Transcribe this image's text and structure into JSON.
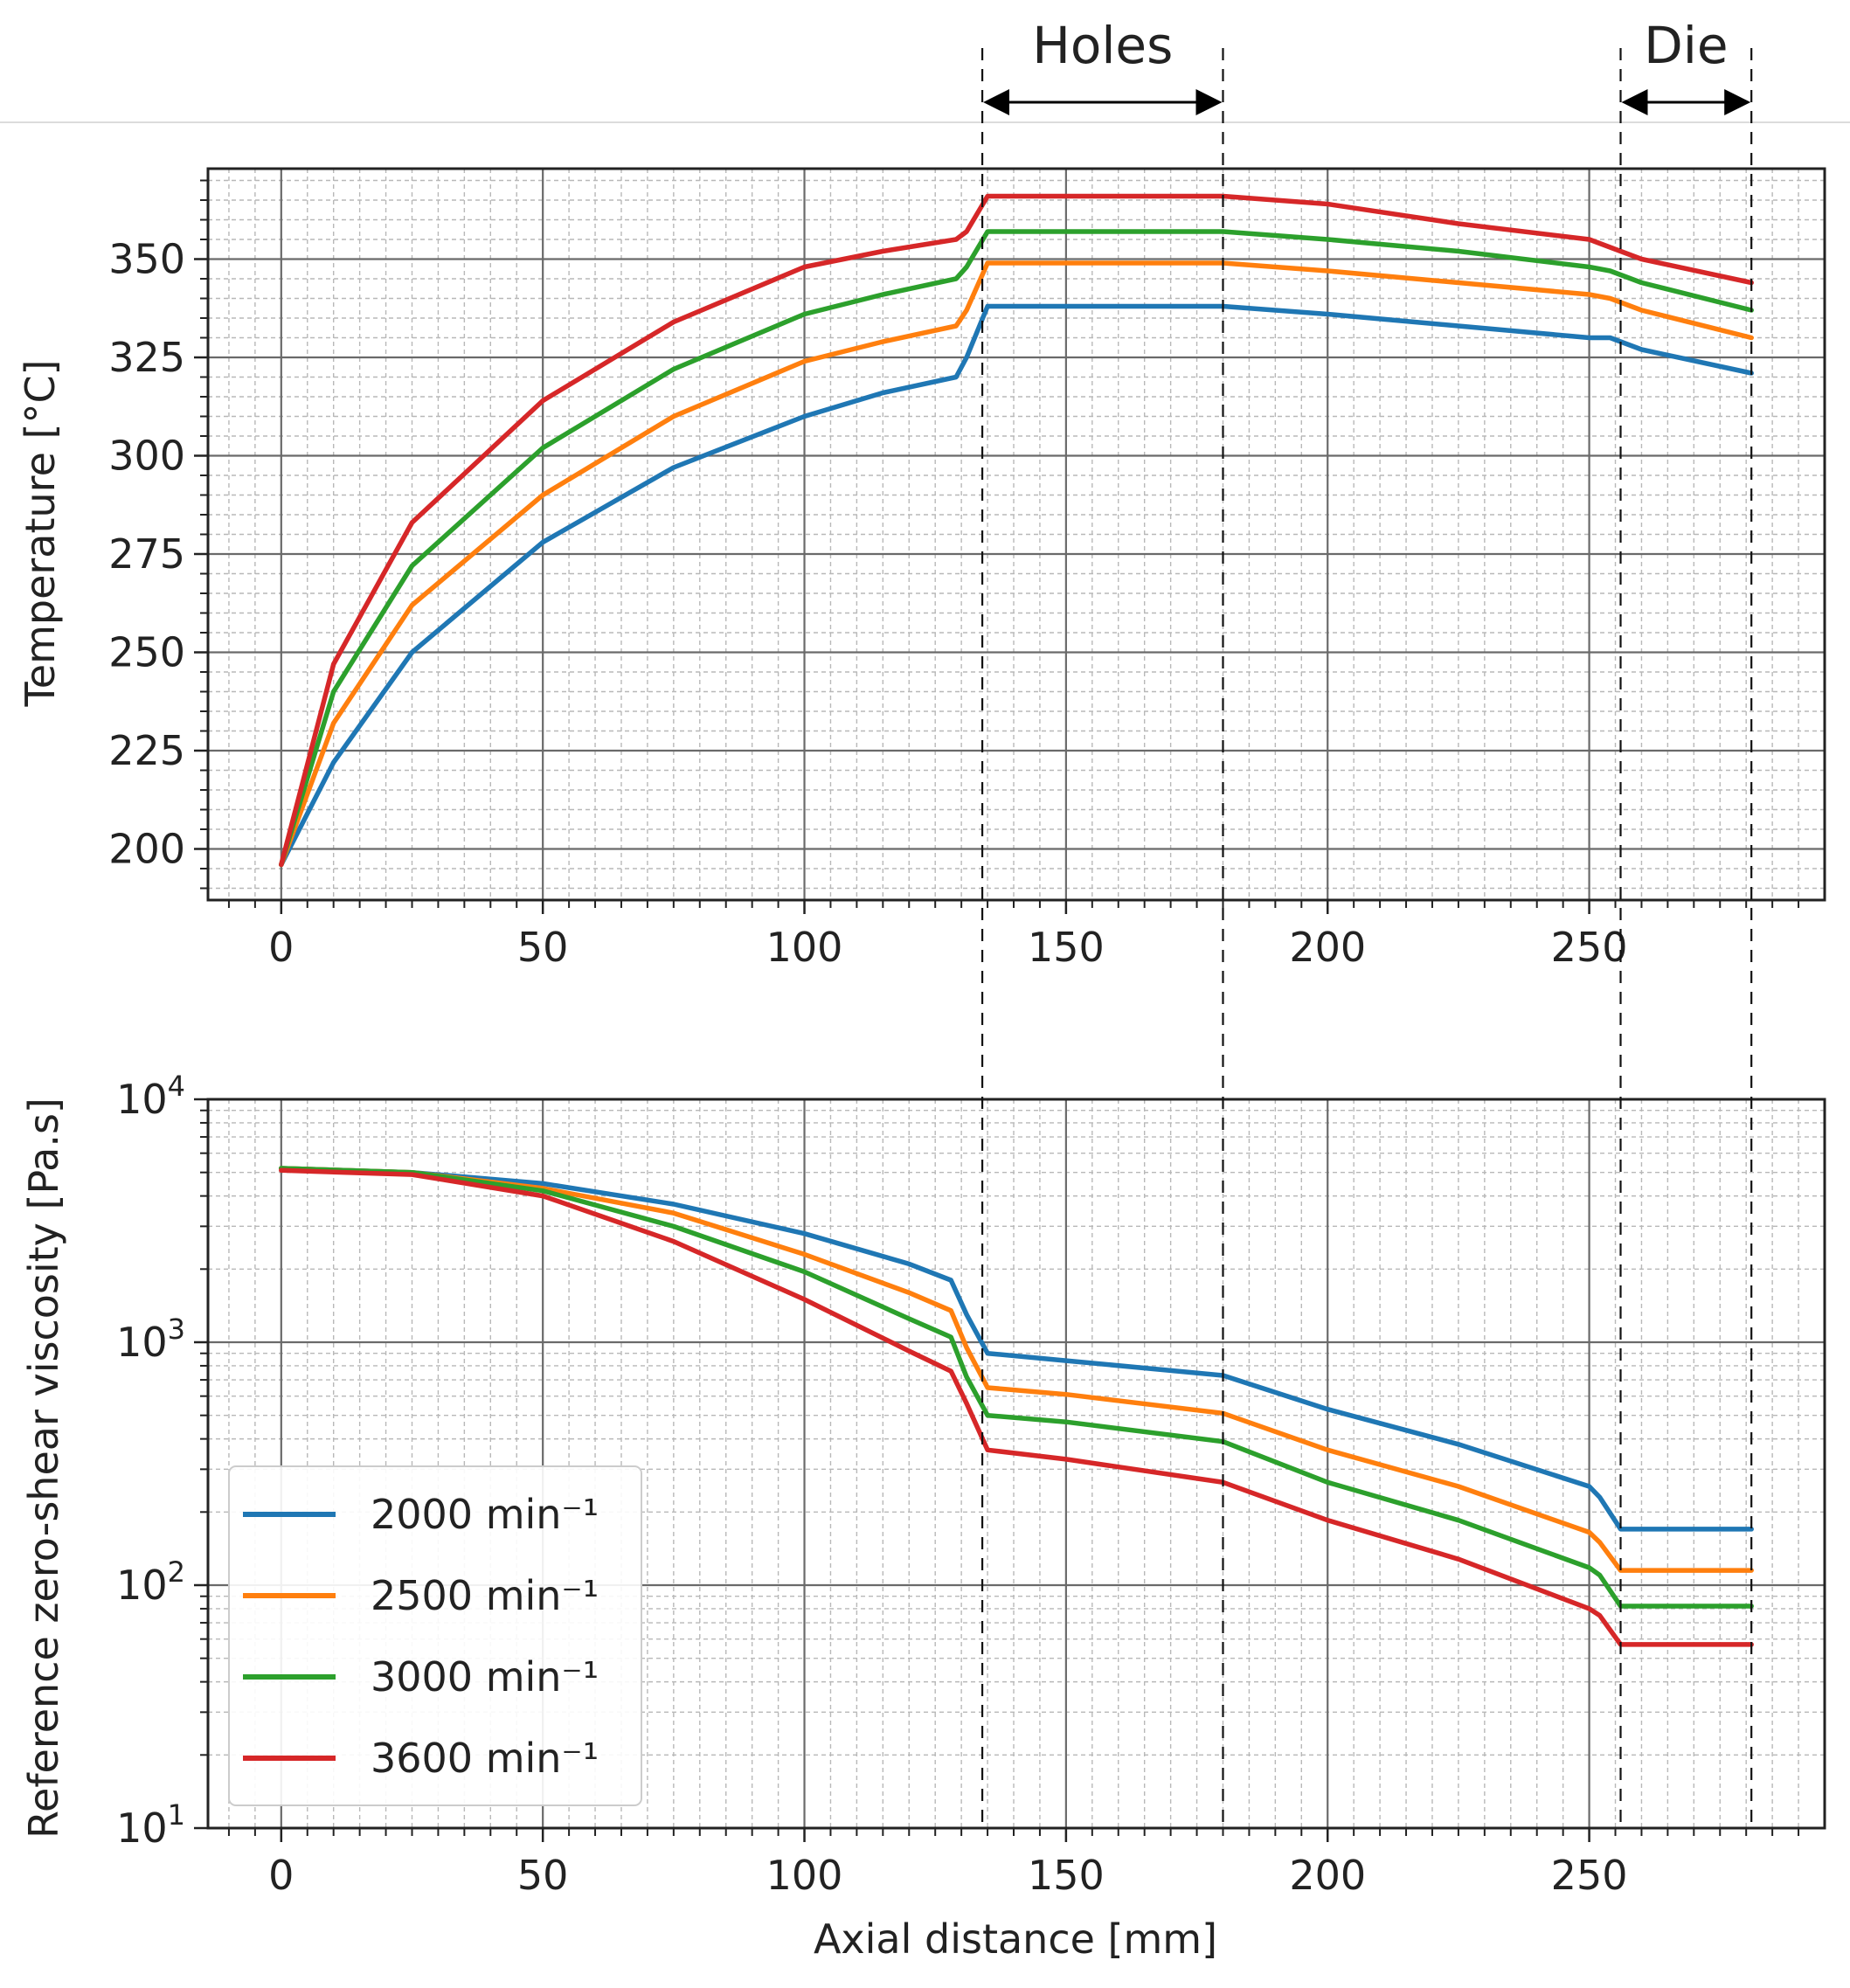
{
  "chart_data": [
    {
      "type": "line",
      "ylabel": "Temperature [°C]",
      "xlabel": "",
      "x_ticks": [
        0,
        50,
        100,
        150,
        200,
        250
      ],
      "y_ticks": [
        200,
        225,
        250,
        275,
        300,
        325,
        350
      ],
      "xlim": [
        -14,
        295
      ],
      "ylim": [
        187,
        373
      ],
      "grid": true,
      "series": [
        {
          "name": "2000 min⁻¹",
          "color": "#1f77b4",
          "points": [
            [
              0,
              196
            ],
            [
              10,
              222
            ],
            [
              25,
              250
            ],
            [
              50,
              278
            ],
            [
              75,
              297
            ],
            [
              100,
              310
            ],
            [
              115,
              316
            ],
            [
              129,
              320
            ],
            [
              131,
              325
            ],
            [
              135,
              338
            ],
            [
              180,
              338
            ],
            [
              200,
              336
            ],
            [
              225,
              333
            ],
            [
              250,
              330
            ],
            [
              254,
              330
            ],
            [
              260,
              327
            ],
            [
              281,
              321
            ]
          ]
        },
        {
          "name": "2500 min⁻¹",
          "color": "#ff7f0e",
          "points": [
            [
              0,
              196
            ],
            [
              10,
              232
            ],
            [
              25,
              262
            ],
            [
              50,
              290
            ],
            [
              75,
              310
            ],
            [
              100,
              324
            ],
            [
              115,
              329
            ],
            [
              129,
              333
            ],
            [
              131,
              337
            ],
            [
              135,
              349
            ],
            [
              180,
              349
            ],
            [
              200,
              347
            ],
            [
              225,
              344
            ],
            [
              250,
              341
            ],
            [
              254,
              340
            ],
            [
              260,
              337
            ],
            [
              281,
              330
            ]
          ]
        },
        {
          "name": "3000 min⁻¹",
          "color": "#2ca02c",
          "points": [
            [
              0,
              196
            ],
            [
              10,
              240
            ],
            [
              25,
              272
            ],
            [
              50,
              302
            ],
            [
              75,
              322
            ],
            [
              100,
              336
            ],
            [
              115,
              341
            ],
            [
              129,
              345
            ],
            [
              131,
              348
            ],
            [
              135,
              357
            ],
            [
              180,
              357
            ],
            [
              200,
              355
            ],
            [
              225,
              352
            ],
            [
              250,
              348
            ],
            [
              254,
              347
            ],
            [
              260,
              344
            ],
            [
              281,
              337
            ]
          ]
        },
        {
          "name": "3600 min⁻¹",
          "color": "#d62728",
          "points": [
            [
              0,
              196
            ],
            [
              10,
              247
            ],
            [
              25,
              283
            ],
            [
              50,
              314
            ],
            [
              75,
              334
            ],
            [
              100,
              348
            ],
            [
              115,
              352
            ],
            [
              129,
              355
            ],
            [
              131,
              357
            ],
            [
              135,
              366
            ],
            [
              180,
              366
            ],
            [
              200,
              364
            ],
            [
              225,
              359
            ],
            [
              250,
              355
            ],
            [
              254,
              353
            ],
            [
              260,
              350
            ],
            [
              281,
              344
            ]
          ]
        }
      ]
    },
    {
      "type": "line",
      "ylabel": "Reference zero-shear viscosity [Pa.s]",
      "xlabel": "Axial distance [mm]",
      "x_ticks": [
        0,
        50,
        100,
        150,
        200,
        250
      ],
      "y_ticks": [
        10,
        100,
        1000,
        10000
      ],
      "y_tick_labels": [
        {
          "base": "10",
          "exp": "1"
        },
        {
          "base": "10",
          "exp": "2"
        },
        {
          "base": "10",
          "exp": "3"
        },
        {
          "base": "10",
          "exp": "4"
        }
      ],
      "y_scale": "log",
      "xlim": [
        -14,
        295
      ],
      "ylim": [
        10,
        10000
      ],
      "grid": true,
      "legend_position": "lower-left",
      "series": [
        {
          "name": "2000 min⁻¹",
          "color": "#1f77b4",
          "points": [
            [
              0,
              5200
            ],
            [
              25,
              5000
            ],
            [
              50,
              4500
            ],
            [
              75,
              3700
            ],
            [
              100,
              2800
            ],
            [
              120,
              2100
            ],
            [
              128,
              1800
            ],
            [
              131,
              1300
            ],
            [
              135,
              900
            ],
            [
              150,
              840
            ],
            [
              180,
              730
            ],
            [
              200,
              530
            ],
            [
              225,
              380
            ],
            [
              250,
              255
            ],
            [
              252,
              230
            ],
            [
              256,
              170
            ],
            [
              281,
              170
            ]
          ]
        },
        {
          "name": "2500 min⁻¹",
          "color": "#ff7f0e",
          "points": [
            [
              0,
              5200
            ],
            [
              25,
              5000
            ],
            [
              50,
              4300
            ],
            [
              75,
              3400
            ],
            [
              100,
              2300
            ],
            [
              120,
              1600
            ],
            [
              128,
              1350
            ],
            [
              131,
              950
            ],
            [
              135,
              650
            ],
            [
              150,
              610
            ],
            [
              180,
              510
            ],
            [
              200,
              360
            ],
            [
              225,
              255
            ],
            [
              250,
              165
            ],
            [
              252,
              150
            ],
            [
              256,
              115
            ],
            [
              281,
              115
            ]
          ]
        },
        {
          "name": "3000 min⁻¹",
          "color": "#2ca02c",
          "points": [
            [
              0,
              5200
            ],
            [
              25,
              5000
            ],
            [
              50,
              4200
            ],
            [
              75,
              3000
            ],
            [
              100,
              1950
            ],
            [
              120,
              1250
            ],
            [
              128,
              1050
            ],
            [
              131,
              720
            ],
            [
              135,
              500
            ],
            [
              150,
              470
            ],
            [
              180,
              390
            ],
            [
              200,
              265
            ],
            [
              225,
              185
            ],
            [
              250,
              118
            ],
            [
              252,
              110
            ],
            [
              256,
              82
            ],
            [
              281,
              82
            ]
          ]
        },
        {
          "name": "3600 min⁻¹",
          "color": "#d62728",
          "points": [
            [
              0,
              5100
            ],
            [
              25,
              4900
            ],
            [
              50,
              4000
            ],
            [
              75,
              2600
            ],
            [
              100,
              1500
            ],
            [
              120,
              920
            ],
            [
              128,
              760
            ],
            [
              131,
              560
            ],
            [
              135,
              360
            ],
            [
              150,
              330
            ],
            [
              180,
              265
            ],
            [
              200,
              185
            ],
            [
              225,
              128
            ],
            [
              250,
              80
            ],
            [
              252,
              75
            ],
            [
              256,
              57
            ],
            [
              281,
              57
            ]
          ]
        }
      ]
    }
  ],
  "annotations": {
    "holes": {
      "label": "Holes",
      "x_start": 134,
      "x_end": 180
    },
    "die": {
      "label": "Die",
      "x_start": 256,
      "x_end": 281
    }
  }
}
